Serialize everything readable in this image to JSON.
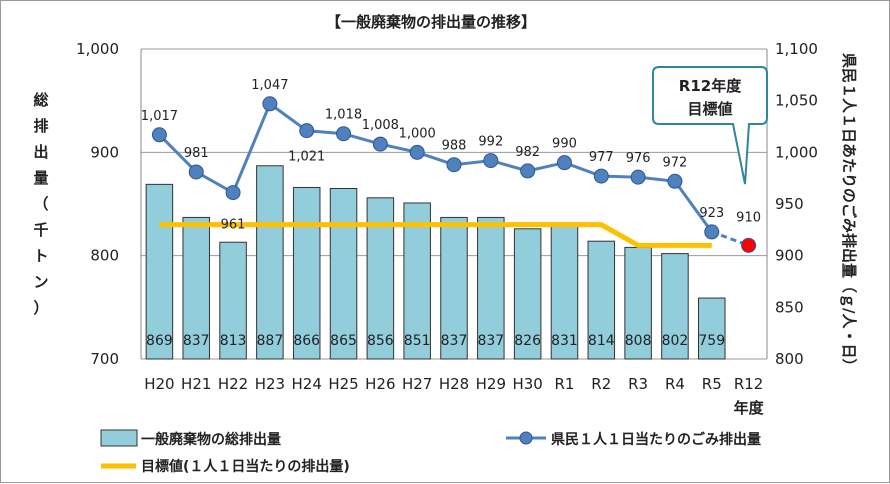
{
  "chart_data": {
    "type": "bar",
    "title": "【一般廃棄物の排出量の推移】",
    "categories": [
      "H20",
      "H21",
      "H22",
      "H23",
      "H24",
      "H25",
      "H26",
      "H27",
      "H28",
      "H29",
      "H30",
      "R1",
      "R2",
      "R3",
      "R4",
      "R5",
      "R12"
    ],
    "xlabel": "年度",
    "left_axis": {
      "label_chars": [
        "総",
        "排",
        "出",
        "量",
        "（",
        "千",
        "ト",
        "ン",
        "）"
      ],
      "range": [
        700,
        1000
      ],
      "ticks": [
        "700",
        "800",
        "900",
        "1,000"
      ]
    },
    "right_axis": {
      "label": "県民１人１日あたりのごみ排出量（ｇ/人・日）",
      "range": [
        800,
        1100
      ],
      "ticks": [
        "800",
        "850",
        "900",
        "950",
        "1,000",
        "1,050",
        "1,100"
      ]
    },
    "series": [
      {
        "name": "一般廃棄物の総排出量",
        "kind": "bar",
        "axis": "left",
        "color": "#92cddc",
        "values": [
          869,
          837,
          813,
          887,
          866,
          865,
          856,
          851,
          837,
          837,
          826,
          831,
          814,
          808,
          802,
          759,
          null
        ],
        "labels": [
          "869",
          "837",
          "813",
          "887",
          "866",
          "865",
          "856",
          "851",
          "837",
          "837",
          "826",
          "831",
          "814",
          "808",
          "802",
          "759",
          ""
        ]
      },
      {
        "name": "県民１人１日当たりのごみ排出量",
        "kind": "line",
        "axis": "right",
        "color": "#4f81bd",
        "values": [
          1017,
          981,
          961,
          1047,
          1021,
          1018,
          1008,
          1000,
          988,
          992,
          982,
          990,
          977,
          976,
          972,
          923,
          910
        ],
        "labels": [
          "1,017",
          "981",
          "961",
          "1,047",
          "1,021",
          "1,018",
          "1,008",
          "1,000",
          "988",
          "992",
          "982",
          "990",
          "977",
          "976",
          "972",
          "923",
          "910"
        ]
      },
      {
        "name": "目標値(１人１日当たりの排出量)",
        "kind": "line",
        "axis": "right",
        "color": "#ffc000",
        "values": [
          null,
          null,
          null,
          null,
          null,
          null,
          null,
          null,
          null,
          null,
          null,
          null,
          null,
          null,
          null,
          null,
          null
        ],
        "points": [
          [
            0,
            930
          ],
          [
            12,
            930
          ],
          [
            13,
            910
          ],
          [
            15,
            910
          ]
        ]
      }
    ],
    "target_marker": {
      "category": "R12",
      "value": 910,
      "color": "#ff0000"
    },
    "callout": [
      "R12年度",
      "目標値"
    ],
    "grid": true,
    "legend_position": "bottom"
  }
}
